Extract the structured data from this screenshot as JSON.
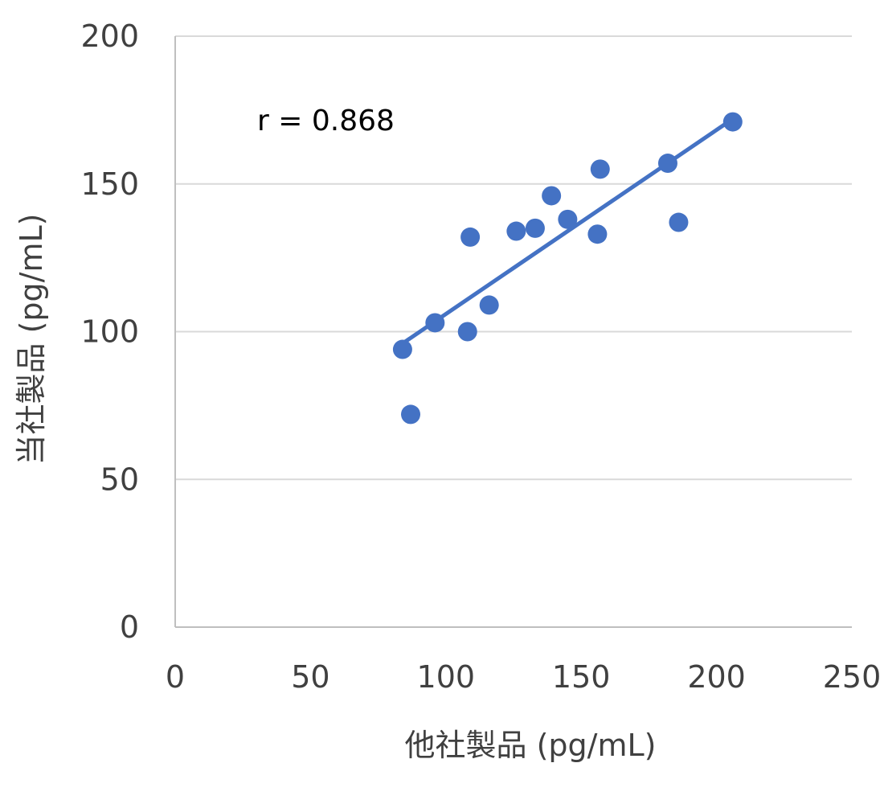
{
  "chart_data": {
    "type": "scatter",
    "xlabel": "他社製品 (pg/mL)",
    "ylabel": "当社製品 (pg/mL)",
    "xlim": [
      0,
      250
    ],
    "ylim": [
      0,
      200
    ],
    "xticks": [
      "0",
      "50",
      "100",
      "150",
      "200",
      "250"
    ],
    "yticks": [
      "0",
      "50",
      "100",
      "150",
      "200"
    ],
    "grid": "horizontal",
    "points": [
      {
        "x": 84,
        "y": 94
      },
      {
        "x": 87,
        "y": 72
      },
      {
        "x": 96,
        "y": 103
      },
      {
        "x": 108,
        "y": 100
      },
      {
        "x": 109,
        "y": 132
      },
      {
        "x": 116,
        "y": 109
      },
      {
        "x": 126,
        "y": 134
      },
      {
        "x": 133,
        "y": 135
      },
      {
        "x": 139,
        "y": 146
      },
      {
        "x": 145,
        "y": 138
      },
      {
        "x": 156,
        "y": 133
      },
      {
        "x": 157,
        "y": 155
      },
      {
        "x": 182,
        "y": 157
      },
      {
        "x": 186,
        "y": 137
      },
      {
        "x": 206,
        "y": 171
      }
    ],
    "trendline": {
      "x": [
        84,
        206
      ],
      "y": [
        96,
        172
      ]
    },
    "annotation": "r = 0.868",
    "point_color": "#4472C4",
    "line_color": "#4472C4",
    "grid_color": "#D9D9D9",
    "axis_color": "#BFBFBF"
  }
}
